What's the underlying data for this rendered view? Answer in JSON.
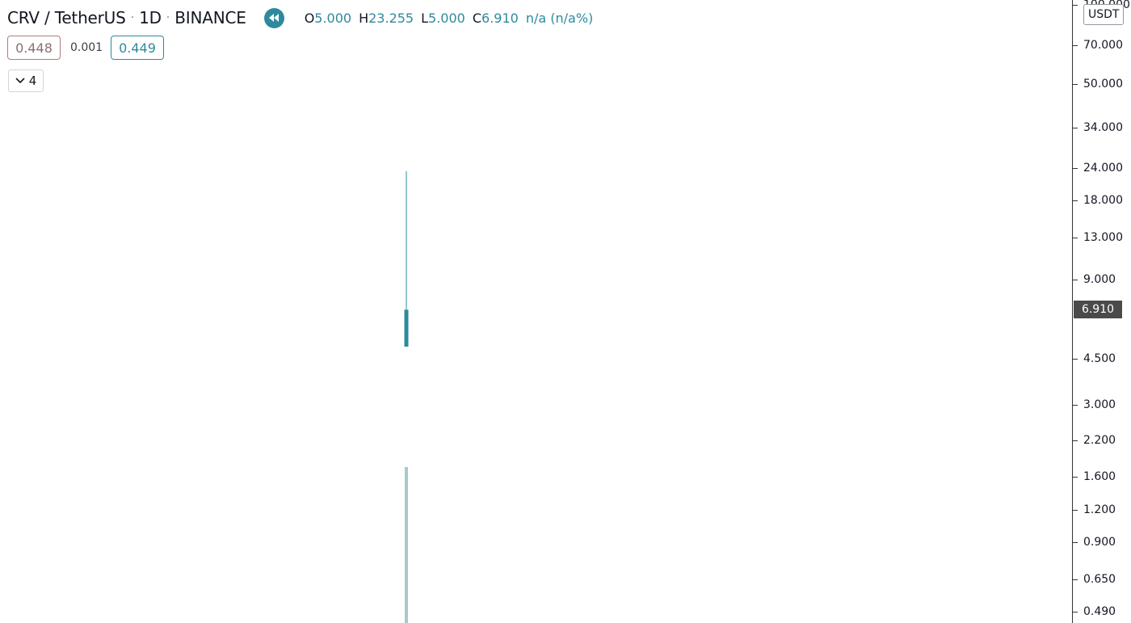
{
  "header": {
    "symbol": "CRV / TetherUS",
    "interval": "1D",
    "exchange": "BINANCE",
    "separator": "·",
    "replay_icon": "rewind-icon",
    "ohlc": {
      "o_key": "O",
      "o_val": "5.000",
      "h_key": "H",
      "h_val": "23.255",
      "l_key": "L",
      "l_val": "5.000",
      "c_key": "C",
      "c_val": "6.910",
      "change": "n/a (n/a%)"
    }
  },
  "trade": {
    "sell": "0.448",
    "spread": "0.001",
    "buy": "0.449"
  },
  "indicators_toggle": {
    "icon": "chevron-down-icon",
    "count": "4"
  },
  "axis": {
    "currency": "USDT",
    "last_price_label": "6.910"
  },
  "colors": {
    "accent": "#2d8a9e",
    "candle": "#2d8a9e",
    "volume": "#a8c9ca",
    "sell_border": "#b37b7e",
    "axis_line": "#333333"
  },
  "chart_data": {
    "type": "candlestick",
    "symbol": "CRV / TetherUS",
    "interval": "1D",
    "y_scale": "log",
    "y_ticks": [
      "100.000",
      "70.000",
      "50.000",
      "34.000",
      "24.000",
      "18.000",
      "13.000",
      "9.000",
      "6.910",
      "4.500",
      "3.000",
      "2.200",
      "1.600",
      "1.200",
      "0.900",
      "0.650",
      "0.490"
    ],
    "candles": [
      {
        "open": 5.0,
        "high": 23.255,
        "low": 5.0,
        "close": 6.91
      }
    ],
    "volume_bars": 1,
    "last_price": 6.91,
    "grid": false
  }
}
